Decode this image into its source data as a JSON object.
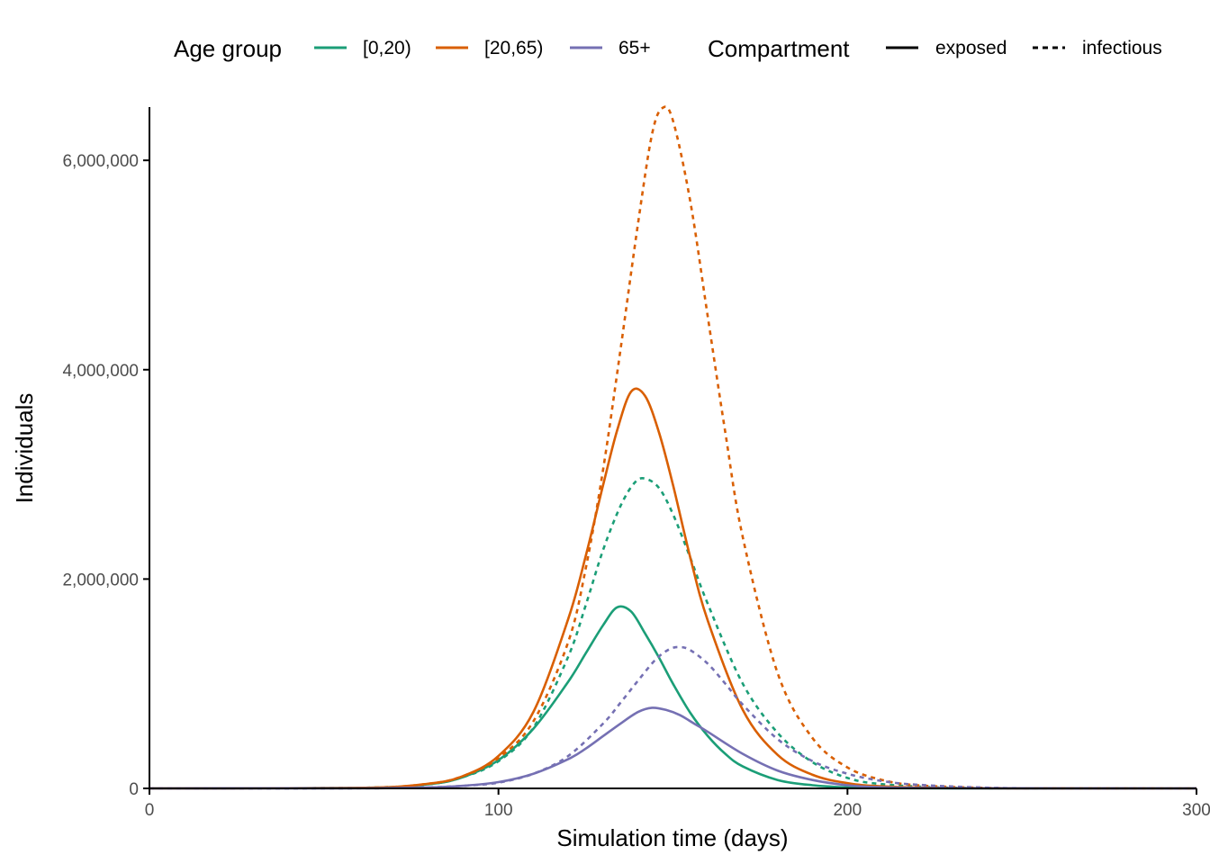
{
  "chart_data": {
    "type": "line",
    "xlabel": "Simulation time (days)",
    "ylabel": "Individuals",
    "xlim": [
      0,
      300
    ],
    "ylim": [
      0,
      6500000
    ],
    "x_ticks": [
      0,
      100,
      200,
      300
    ],
    "x_tick_labels": [
      "0",
      "100",
      "200",
      "300"
    ],
    "y_ticks": [
      0,
      2000000,
      4000000,
      6000000
    ],
    "y_tick_labels": [
      "0",
      "2,000,000",
      "4,000,000",
      "6,000,000"
    ],
    "grid": false,
    "legend_position": "top",
    "legend": {
      "color_title": "Age group",
      "color_entries": [
        {
          "label": "[0,20)",
          "color": "#1b9e77"
        },
        {
          "label": "[20,65)",
          "color": "#d95f02"
        },
        {
          "label": "65+",
          "color": "#7570b3"
        }
      ],
      "linetype_title": "Compartment",
      "linetype_entries": [
        {
          "label": "exposed",
          "style": "solid"
        },
        {
          "label": "infectious",
          "style": "dashed"
        }
      ]
    },
    "series": [
      {
        "age_group": "[0,20)",
        "compartment": "exposed",
        "color": "#1b9e77",
        "style": "solid",
        "x": [
          0,
          60,
          80,
          90,
          100,
          110,
          120,
          125,
          130,
          134,
          138,
          142,
          146,
          150,
          155,
          160,
          165,
          170,
          180,
          190,
          200,
          210,
          230,
          260,
          300
        ],
        "y": [
          0,
          5000,
          40000,
          110000,
          270000,
          570000,
          1020000,
          1290000,
          1560000,
          1730000,
          1690000,
          1480000,
          1250000,
          1000000,
          720000,
          500000,
          330000,
          210000,
          80000,
          30000,
          10000,
          3000,
          500,
          0,
          0
        ]
      },
      {
        "age_group": "[0,20)",
        "compartment": "infectious",
        "color": "#1b9e77",
        "style": "dashed",
        "x": [
          0,
          60,
          80,
          90,
          100,
          110,
          120,
          125,
          130,
          135,
          139,
          142,
          146,
          150,
          155,
          160,
          170,
          180,
          190,
          200,
          210,
          230,
          260,
          300
        ],
        "y": [
          0,
          5000,
          40000,
          110000,
          260000,
          580000,
          1260000,
          1750000,
          2280000,
          2700000,
          2920000,
          2960000,
          2870000,
          2620000,
          2200000,
          1760000,
          1000000,
          530000,
          250000,
          100000,
          40000,
          6000,
          500,
          0
        ]
      },
      {
        "age_group": "[20,65)",
        "compartment": "exposed",
        "color": "#d95f02",
        "style": "solid",
        "x": [
          0,
          60,
          80,
          90,
          100,
          110,
          120,
          125,
          130,
          134,
          138,
          142,
          146,
          150,
          155,
          160,
          170,
          180,
          190,
          200,
          210,
          230,
          260,
          300
        ],
        "y": [
          0,
          5000,
          45000,
          120000,
          310000,
          730000,
          1620000,
          2220000,
          2900000,
          3420000,
          3790000,
          3750000,
          3400000,
          2900000,
          2200000,
          1600000,
          750000,
          320000,
          130000,
          50000,
          20000,
          3000,
          300,
          0
        ]
      },
      {
        "age_group": "[20,65)",
        "compartment": "infectious",
        "color": "#d95f02",
        "style": "dashed",
        "x": [
          0,
          60,
          80,
          90,
          100,
          110,
          120,
          125,
          130,
          135,
          140,
          144,
          147,
          150,
          155,
          160,
          165,
          170,
          180,
          190,
          200,
          210,
          220,
          240,
          260,
          300
        ],
        "y": [
          0,
          5000,
          45000,
          120000,
          290000,
          640000,
          1400000,
          2100000,
          3050000,
          4200000,
          5400000,
          6250000,
          6500000,
          6380000,
          5600000,
          4500000,
          3400000,
          2400000,
          1100000,
          480000,
          200000,
          80000,
          30000,
          5000,
          1000,
          0
        ]
      },
      {
        "age_group": "65+",
        "compartment": "exposed",
        "color": "#7570b3",
        "style": "solid",
        "x": [
          0,
          60,
          80,
          90,
          100,
          110,
          120,
          125,
          130,
          135,
          140,
          144,
          148,
          152,
          156,
          160,
          170,
          180,
          190,
          200,
          210,
          230,
          260,
          300
        ],
        "y": [
          0,
          1000,
          10000,
          25000,
          60000,
          140000,
          280000,
          380000,
          500000,
          620000,
          730000,
          770000,
          750000,
          700000,
          620000,
          540000,
          330000,
          170000,
          80000,
          30000,
          10000,
          2000,
          0,
          0
        ]
      },
      {
        "age_group": "65+",
        "compartment": "infectious",
        "color": "#7570b3",
        "style": "dashed",
        "x": [
          0,
          60,
          80,
          90,
          100,
          110,
          120,
          130,
          135,
          140,
          145,
          149,
          152,
          155,
          160,
          165,
          170,
          180,
          190,
          200,
          210,
          220,
          240,
          260,
          300
        ],
        "y": [
          0,
          1000,
          10000,
          25000,
          55000,
          140000,
          310000,
          620000,
          820000,
          1030000,
          1230000,
          1330000,
          1350000,
          1320000,
          1190000,
          1000000,
          800000,
          470000,
          260000,
          140000,
          70000,
          35000,
          7000,
          1000,
          0
        ]
      }
    ]
  }
}
